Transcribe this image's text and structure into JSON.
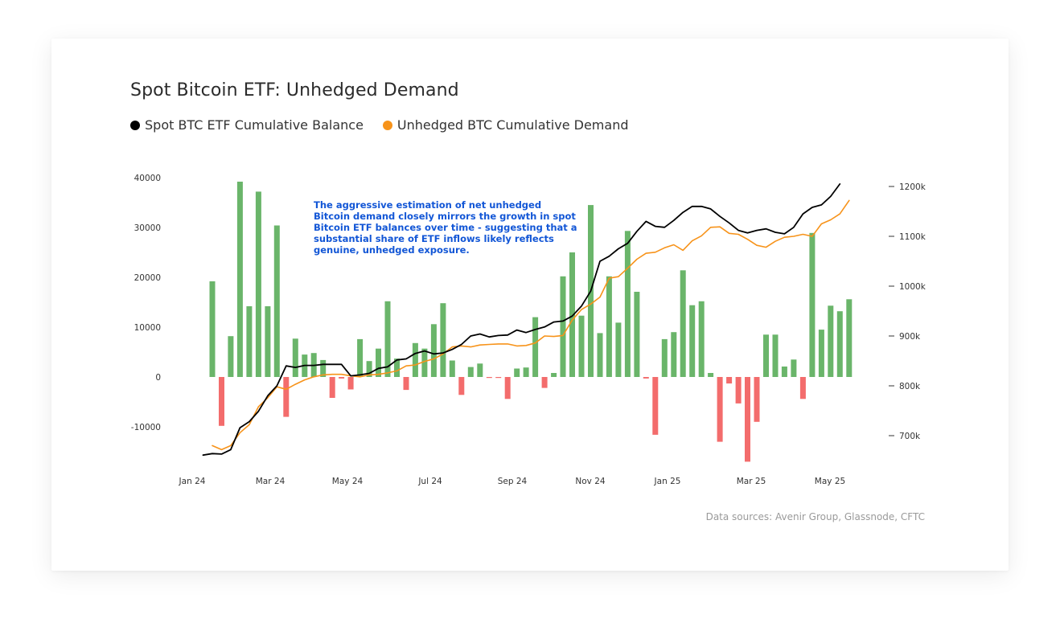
{
  "chart_data": {
    "type": "bar+line",
    "title": "Spot Bitcoin ETF: Unhedged Demand",
    "x_ticks": [
      "Jan 24",
      "Mar 24",
      "May 24",
      "Jul 24",
      "Sep 24",
      "Nov 24",
      "Jan 25",
      "Mar 25",
      "May 25"
    ],
    "y_left_ticks": [
      "40000",
      "30000",
      "20000",
      "10000",
      "0",
      "-10000"
    ],
    "y_left_range": [
      -17000,
      40000
    ],
    "y_right_ticks": [
      "1200k",
      "1100k",
      "1000k",
      "900k",
      "800k",
      "700k"
    ],
    "y_right_range": [
      660,
      1222
    ],
    "legend": [
      {
        "label": "Spot BTC ETF Cumulative Balance",
        "color": "#000000"
      },
      {
        "label": "Unhedged BTC Cumulative Demand",
        "color": "#f7931a"
      }
    ],
    "bar_colors": {
      "positive": "#6ab56a",
      "negative": "#f36c6c"
    },
    "bars": [
      19200,
      -9800,
      8200,
      39200,
      14200,
      37200,
      14200,
      30400,
      -8000,
      7700,
      4500,
      4800,
      3400,
      -4200,
      -300,
      -2500,
      7600,
      3200,
      5700,
      15200,
      3700,
      -2600,
      6800,
      5700,
      10600,
      14800,
      3300,
      -3600,
      2000,
      2700,
      -200,
      -200,
      -4400,
      1700,
      1900,
      12000,
      -2200,
      800,
      20200,
      25000,
      12300,
      34500,
      8800,
      20200,
      10900,
      29300,
      17100,
      -300,
      -11600,
      7600,
      9000,
      21400,
      14400,
      15200,
      800,
      -13000,
      -1300,
      -5300,
      -17000,
      -9000,
      8500,
      8500,
      2100,
      3500,
      -4400,
      28900,
      9500,
      14300,
      13200,
      15600
    ],
    "series": [
      {
        "name": "Spot BTC ETF Cumulative Balance",
        "color": "#000000",
        "values": [
          661,
          664,
          663,
          672,
          716,
          728,
          749,
          780,
          800,
          840,
          837,
          841,
          841,
          843,
          843,
          843,
          820,
          822,
          825,
          835,
          838,
          852,
          854,
          865,
          870,
          864,
          866,
          873,
          883,
          900,
          904,
          898,
          901,
          902,
          912,
          907,
          913,
          918,
          928,
          930,
          940,
          960,
          990,
          1050,
          1060,
          1075,
          1086,
          1110,
          1130,
          1120,
          1118,
          1132,
          1148,
          1160,
          1160,
          1155,
          1140,
          1127,
          1112,
          1107,
          1112,
          1115,
          1108,
          1105,
          1118,
          1145,
          1158,
          1163,
          1180,
          1205
        ]
      },
      {
        "name": "Unhedged BTC Cumulative Demand",
        "color": "#f7931a",
        "values": [
          680,
          672,
          680,
          706,
          722,
          758,
          776,
          798,
          793,
          803,
          812,
          818,
          822,
          823,
          823,
          820,
          818,
          822,
          823,
          826,
          830,
          840,
          842,
          849,
          854,
          864,
          878,
          880,
          878,
          882,
          883,
          884,
          884,
          880,
          881,
          886,
          900,
          899,
          901,
          932,
          953,
          964,
          978,
          1016,
          1019,
          1036,
          1054,
          1066,
          1068,
          1077,
          1083,
          1072,
          1091,
          1101,
          1118,
          1119,
          1106,
          1104,
          1094,
          1082,
          1078,
          1090,
          1098,
          1100,
          1104,
          1100,
          1125,
          1133,
          1145,
          1172
        ]
      }
    ],
    "annotation": "The aggressive estimation of net unhedged Bitcoin demand closely mirrors the growth in spot Bitcoin ETF balances over time - suggesting that a substantial share of ETF inflows likely reflects genuine, unhedged exposure.",
    "source": "Data sources: Avenir Group, Glassnode, CFTC"
  }
}
